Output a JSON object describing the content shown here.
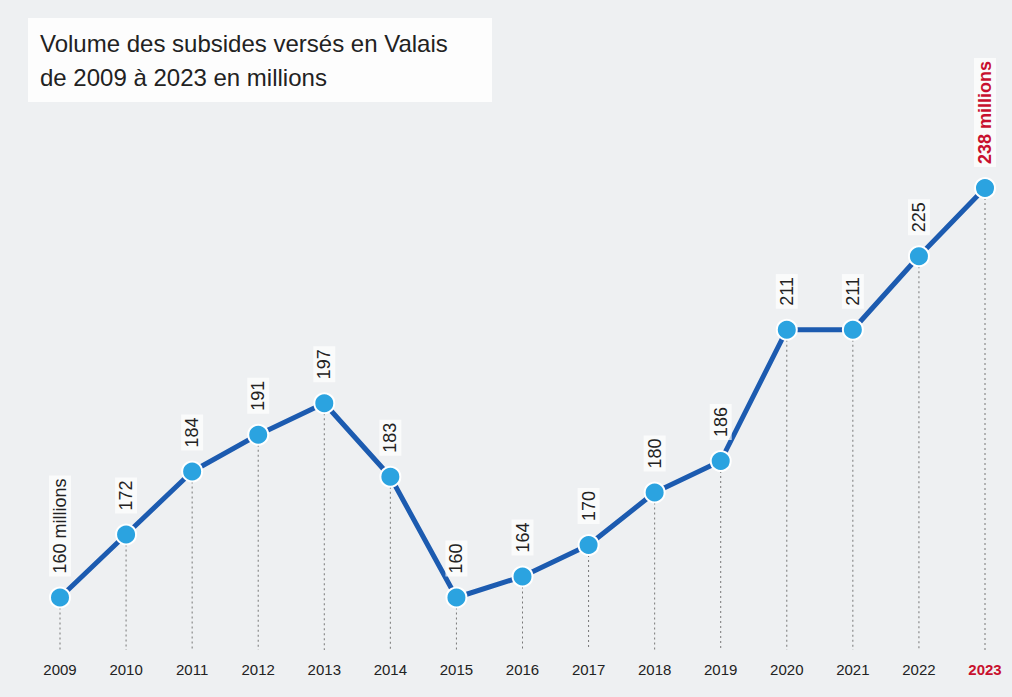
{
  "chart_data": {
    "type": "line",
    "title": "Volume des subsides versés en Valais de 2009 à 2023 en millions",
    "categories": [
      "2009",
      "2010",
      "2011",
      "2012",
      "2013",
      "2014",
      "2015",
      "2016",
      "2017",
      "2018",
      "2019",
      "2020",
      "2021",
      "2022",
      "2023"
    ],
    "values": [
      160,
      172,
      184,
      191,
      197,
      183,
      160,
      164,
      170,
      180,
      186,
      211,
      211,
      225,
      238
    ],
    "value_labels": [
      "160 millions",
      "172",
      "184",
      "191",
      "197",
      "183",
      "160",
      "164",
      "170",
      "180",
      "186",
      "211",
      "211",
      "225",
      "238 millions"
    ],
    "color": "#1c5bb0",
    "marker": "circle",
    "ylim": [
      150,
      270
    ],
    "data_labels": true,
    "tick_labels": "x",
    "grid": false
  }
}
